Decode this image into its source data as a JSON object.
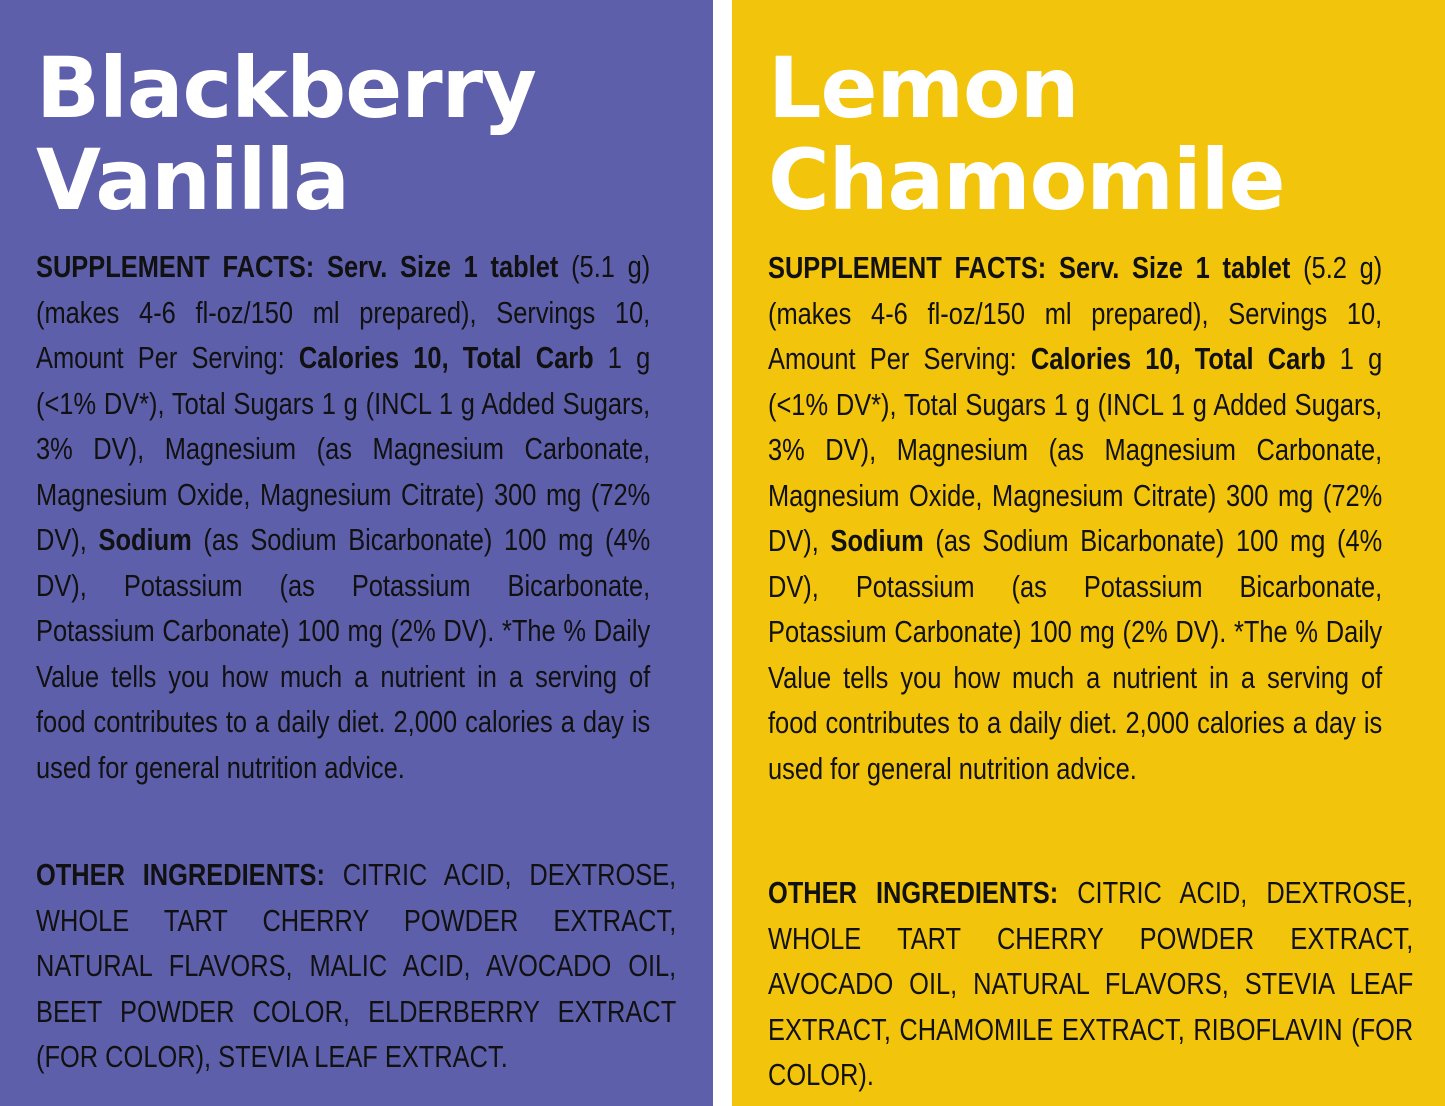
{
  "left": {
    "title_line1": "Blackberry",
    "title_line2": "Vanilla",
    "facts": {
      "label": "SUPPLEMENT FACTS:",
      "serv_size": "Serv. Size 1 tablet",
      "part1": "(5.1 g) (makes 4-6 fl-oz/150 ml prepared), Servings 10, Amount Per Serving:",
      "calories": "Calories 10, Total Carb",
      "part2": "1 g (<1% DV*), Total Sugars 1 g (INCL 1 g Added Sugars, 3% DV), Magnesium (as Magnesium Carbonate, Magnesium Oxide, Magnesium Citrate) 300 mg (72% DV),",
      "sodium": "Sodium",
      "part3": "(as Sodium Bicarbonate) 100 mg (4% DV), Potassium (as Potassium Bicarbonate, Potassium Carbonate) 100 mg (2% DV). *The % Daily Value tells you how much a nutrient in a serving of food contributes to a daily diet. 2,000 calories a day is used for general nutrition advice."
    },
    "ingredients": {
      "label": "OTHER INGREDIENTS:",
      "text": "CITRIC ACID, DEXTROSE, WHOLE TART CHERRY POWDER EXTRACT, NATURAL FLAVORS, MALIC ACID, AVOCADO OIL, BEET POWDER COLOR, ELDERBERRY EXTRACT (FOR COLOR), STEVIA LEAF EXTRACT."
    }
  },
  "right": {
    "title_line1": "Lemon",
    "title_line2": "Chamomile",
    "facts": {
      "label": "SUPPLEMENT FACTS:",
      "serv_size": "Serv. Size 1 tablet",
      "part1": "(5.2 g) (makes 4-6 fl-oz/150 ml prepared), Servings 10, Amount Per Serving:",
      "calories": "Calories 10, Total Carb",
      "part2": "1 g (<1% DV*), Total Sugars 1 g (INCL 1 g Added Sugars, 3% DV), Magnesium (as Magnesium Carbonate, Magnesium Oxide, Magnesium Citrate) 300 mg (72% DV),",
      "sodium": "Sodium",
      "part3": "(as Sodium Bicarbonate) 100 mg (4% DV), Potassium (as Potassium Bicarbonate, Potassium Carbonate) 100 mg (2% DV). *The % Daily Value tells you how much a nutrient in a serving of food contributes to a daily diet. 2,000 calories a day is used for general nutrition advice."
    },
    "ingredients": {
      "label": "OTHER INGREDIENTS:",
      "text": "CITRIC ACID, DEXTROSE, WHOLE TART CHERRY POWDER EXTRACT, AVOCADO OIL, NATURAL FLAVORS, STEVIA LEAF EXTRACT, CHAMOMILE EXTRACT, RIBOFLAVIN (FOR COLOR)."
    }
  },
  "colors": {
    "left_panel": "#5e5fab",
    "right_panel": "#f2c40c",
    "title": "#ffffff",
    "text": "#111111"
  }
}
